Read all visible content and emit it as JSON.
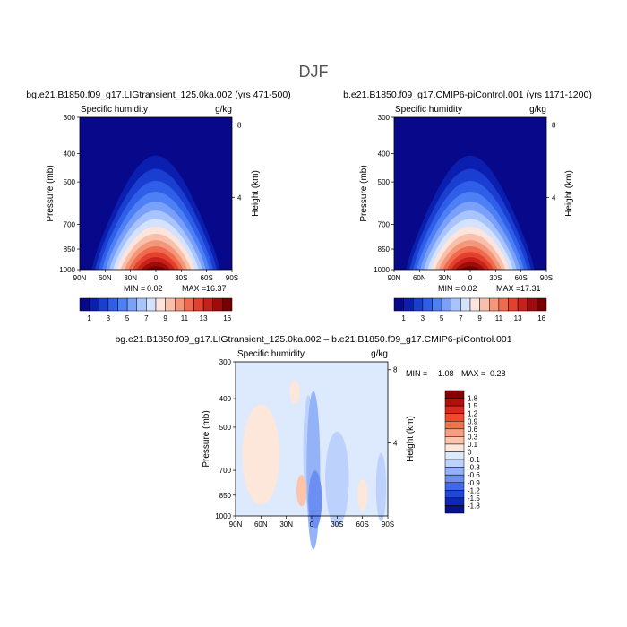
{
  "page_title": "DJF",
  "chart_data": [
    {
      "type": "heatmap",
      "title": "bg.e21.B1850.f09_g17.LIGtransient_125.0ka.002 (yrs 471-500)",
      "variable": "Specific humidity",
      "units": "g/kg",
      "xlabel": "",
      "ylabel": "Pressure (mb)",
      "y2label": "Height (km)",
      "x_ticks": [
        "90N",
        "60N",
        "30N",
        "0",
        "30S",
        "60S",
        "90S"
      ],
      "x_tick_values": [
        90,
        60,
        30,
        0,
        -30,
        -60,
        -90
      ],
      "y_ticks": [
        "300",
        "400",
        "500",
        "700",
        "850",
        "1000"
      ],
      "y_tick_values": [
        300,
        400,
        500,
        700,
        850,
        1000
      ],
      "y2_ticks": [
        "8",
        "4"
      ],
      "y2_tick_values": [
        8,
        4
      ],
      "ylim": [
        1000,
        300
      ],
      "min_label": "MIN =",
      "min": "0.02",
      "max_label": "MAX =",
      "max": "16.37",
      "peak_value": 16.37,
      "peak_lat": 0,
      "colorbar": {
        "orientation": "horizontal",
        "labels": [
          "1",
          "3",
          "5",
          "7",
          "9",
          "11",
          "13",
          "16"
        ],
        "colors": [
          "#08088a",
          "#0a1fb0",
          "#1a3fd0",
          "#2f5fe8",
          "#4d7ff5",
          "#7aa0fa",
          "#a8c4fc",
          "#d4e2fe",
          "#fde4dc",
          "#f8c0aa",
          "#f4967a",
          "#ef6a4e",
          "#e3402d",
          "#c8201a",
          "#a00a0a",
          "#780000"
        ]
      }
    },
    {
      "type": "heatmap",
      "title": "b.e21.B1850.f09_g17.CMIP6-piControl.001 (yrs 1171-1200)",
      "variable": "Specific humidity",
      "units": "g/kg",
      "xlabel": "",
      "ylabel": "Pressure (mb)",
      "y2label": "Height (km)",
      "x_ticks": [
        "90N",
        "60N",
        "30N",
        "0",
        "30S",
        "60S",
        "90S"
      ],
      "x_tick_values": [
        90,
        60,
        30,
        0,
        -30,
        -60,
        -90
      ],
      "y_ticks": [
        "300",
        "400",
        "500",
        "700",
        "850",
        "1000"
      ],
      "y_tick_values": [
        300,
        400,
        500,
        700,
        850,
        1000
      ],
      "y2_ticks": [
        "8",
        "4"
      ],
      "y2_tick_values": [
        8,
        4
      ],
      "ylim": [
        1000,
        300
      ],
      "min_label": "MIN =",
      "min": "0.02",
      "max_label": "MAX =",
      "max": "17.31",
      "peak_value": 17.31,
      "peak_lat": 0,
      "colorbar": {
        "orientation": "horizontal",
        "labels": [
          "1",
          "3",
          "5",
          "7",
          "9",
          "11",
          "13",
          "16"
        ],
        "colors": [
          "#08088a",
          "#0a1fb0",
          "#1a3fd0",
          "#2f5fe8",
          "#4d7ff5",
          "#7aa0fa",
          "#a8c4fc",
          "#d4e2fe",
          "#fde4dc",
          "#f8c0aa",
          "#f4967a",
          "#ef6a4e",
          "#e3402d",
          "#c8201a",
          "#a00a0a",
          "#780000"
        ]
      }
    },
    {
      "type": "heatmap",
      "title": "bg.e21.B1850.f09_g17.LIGtransient_125.0ka.002 – b.e21.B1850.f09_g17.CMIP6-piControl.001",
      "variable": "Specific humidity",
      "units": "g/kg",
      "xlabel": "",
      "ylabel": "Pressure (mb)",
      "y2label": "Height (km)",
      "x_ticks": [
        "90N",
        "60N",
        "30N",
        "0",
        "30S",
        "60S",
        "90S"
      ],
      "x_tick_values": [
        90,
        60,
        30,
        0,
        -30,
        -60,
        -90
      ],
      "y_ticks": [
        "300",
        "400",
        "500",
        "700",
        "850",
        "1000"
      ],
      "y_tick_values": [
        300,
        400,
        500,
        700,
        850,
        1000
      ],
      "y2_ticks": [
        "8",
        "4"
      ],
      "y2_tick_values": [
        8,
        4
      ],
      "ylim": [
        1000,
        300
      ],
      "min_label": "MIN =",
      "min": "-1.08",
      "max_label": "MAX =",
      "max": "0.28",
      "colorbar": {
        "orientation": "vertical",
        "labels": [
          "1.8",
          "1.5",
          "1.2",
          "0.9",
          "0.6",
          "0.3",
          "0.1",
          "0",
          "-0.1",
          "-0.3",
          "-0.6",
          "-0.9",
          "-1.2",
          "-1.5",
          "-1.8"
        ],
        "colors": [
          "#8a0000",
          "#b3100c",
          "#d82a1c",
          "#ee4a32",
          "#f4734f",
          "#f89d7f",
          "#fbc4ab",
          "#fde6da",
          "#ddeafd",
          "#bcd1fb",
          "#94b2f7",
          "#6b8ff2",
          "#4068ea",
          "#1f47d8",
          "#0c28b8",
          "#06128a"
        ]
      }
    }
  ]
}
